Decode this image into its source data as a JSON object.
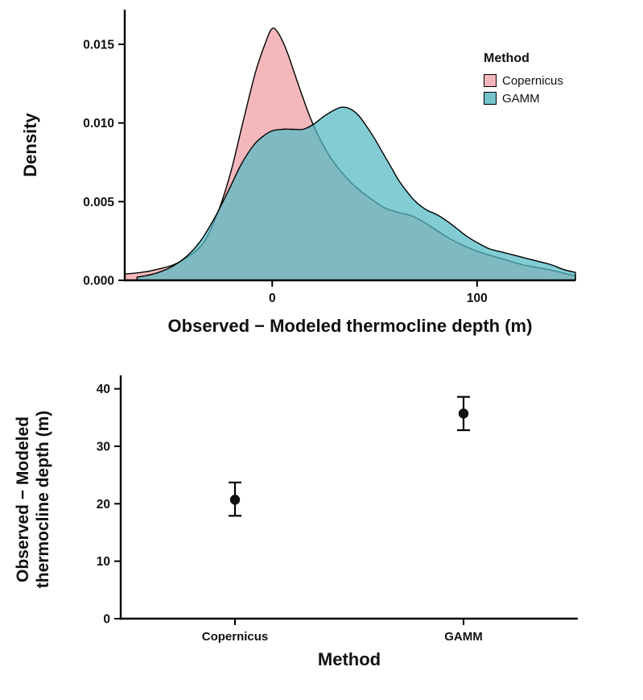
{
  "colors": {
    "copernicus_fill": "#F4B8BC",
    "gamm_fill": "#52BAC4",
    "copernicus_legend": "#F3B6BA",
    "gamm_legend": "#74C3CB",
    "stroke": "#000000",
    "text": "#111111",
    "background": "#ffffff"
  },
  "chart_data": [
    {
      "type": "area",
      "subtype": "density",
      "title": "",
      "xlabel": "Observed − Modeled thermocline depth (m)",
      "ylabel": "Density",
      "xlim": [
        -72,
        148
      ],
      "ylim": [
        0,
        0.0172
      ],
      "xticks": [
        0,
        100
      ],
      "yticks": [
        0,
        0.005,
        0.01,
        0.015
      ],
      "ytick_labels": [
        "0.000",
        "0.005",
        "0.010",
        "0.015"
      ],
      "grid": false,
      "legend": {
        "title": "Method",
        "position": "right-top",
        "entries": [
          "Copernicus",
          "GAMM"
        ]
      },
      "series": [
        {
          "name": "Copernicus",
          "color_key": "copernicus_fill",
          "opacity": 1,
          "points": [
            [
              -72,
              0.0004
            ],
            [
              -64,
              0.0005
            ],
            [
              -56,
              0.0007
            ],
            [
              -48,
              0.001
            ],
            [
              -40,
              0.0016
            ],
            [
              -33,
              0.0025
            ],
            [
              -26,
              0.0045
            ],
            [
              -20,
              0.007
            ],
            [
              -14,
              0.0102
            ],
            [
              -8,
              0.0133
            ],
            [
              -3,
              0.0152
            ],
            [
              0,
              0.016
            ],
            [
              3,
              0.0157
            ],
            [
              7,
              0.0146
            ],
            [
              11,
              0.0131
            ],
            [
              15,
              0.0116
            ],
            [
              19,
              0.0102
            ],
            [
              24,
              0.0088
            ],
            [
              29,
              0.0077
            ],
            [
              35,
              0.0067
            ],
            [
              41,
              0.0059
            ],
            [
              48,
              0.0052
            ],
            [
              55,
              0.0046
            ],
            [
              62,
              0.0043
            ],
            [
              68,
              0.0041
            ],
            [
              74,
              0.0037
            ],
            [
              80,
              0.0032
            ],
            [
              86,
              0.0027
            ],
            [
              92,
              0.0023
            ],
            [
              99,
              0.0019
            ],
            [
              106,
              0.0016
            ],
            [
              114,
              0.0013
            ],
            [
              122,
              0.001
            ],
            [
              130,
              0.0008
            ],
            [
              138,
              0.0006
            ],
            [
              144,
              0.0004
            ],
            [
              148,
              0.0003
            ]
          ]
        },
        {
          "name": "GAMM",
          "color_key": "gamm_fill",
          "opacity": 0.72,
          "points": [
            [
              -66,
              0.0002
            ],
            [
              -58,
              0.0004
            ],
            [
              -50,
              0.0008
            ],
            [
              -42,
              0.0015
            ],
            [
              -35,
              0.0025
            ],
            [
              -28,
              0.004
            ],
            [
              -21,
              0.0058
            ],
            [
              -15,
              0.0074
            ],
            [
              -9,
              0.0086
            ],
            [
              -4,
              0.0092
            ],
            [
              0,
              0.0095
            ],
            [
              5,
              0.0096
            ],
            [
              10,
              0.0096
            ],
            [
              15,
              0.0096
            ],
            [
              20,
              0.0099
            ],
            [
              25,
              0.0104
            ],
            [
              30,
              0.0108
            ],
            [
              34,
              0.011
            ],
            [
              38,
              0.0109
            ],
            [
              42,
              0.0105
            ],
            [
              46,
              0.0098
            ],
            [
              50,
              0.009
            ],
            [
              54,
              0.0081
            ],
            [
              58,
              0.0072
            ],
            [
              62,
              0.0063
            ],
            [
              66,
              0.0056
            ],
            [
              70,
              0.005
            ],
            [
              75,
              0.0045
            ],
            [
              80,
              0.0042
            ],
            [
              85,
              0.0038
            ],
            [
              90,
              0.0033
            ],
            [
              95,
              0.0028
            ],
            [
              100,
              0.0024
            ],
            [
              106,
              0.002
            ],
            [
              112,
              0.0018
            ],
            [
              118,
              0.0016
            ],
            [
              124,
              0.0014
            ],
            [
              130,
              0.0012
            ],
            [
              136,
              0.001
            ],
            [
              142,
              0.0007
            ],
            [
              148,
              0.0005
            ]
          ]
        }
      ]
    },
    {
      "type": "scatter",
      "subtype": "pointrange",
      "title": "",
      "xlabel": "Method",
      "ylabel": "Observed − Modeled thermocline depth (m)",
      "ylabel_lines": [
        "Observed − Modeled",
        "thermocline depth (m)"
      ],
      "ylim": [
        0,
        41.5
      ],
      "yticks": [
        0,
        10,
        20,
        30,
        40
      ],
      "grid": false,
      "categories": [
        "Copernicus",
        "GAMM"
      ],
      "points": [
        {
          "category": "Copernicus",
          "mean": 20.7,
          "lower": 17.9,
          "upper": 23.7
        },
        {
          "category": "GAMM",
          "mean": 35.7,
          "lower": 32.8,
          "upper": 38.6
        }
      ]
    }
  ]
}
